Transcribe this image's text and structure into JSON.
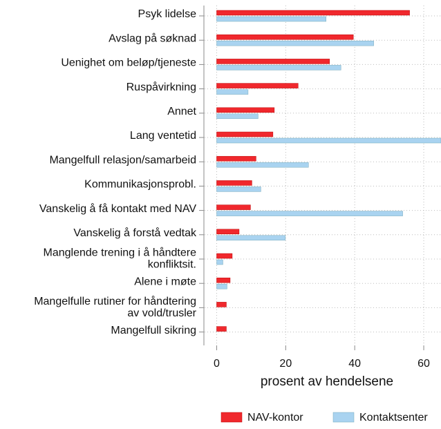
{
  "chart_data": {
    "type": "bar",
    "orientation": "horizontal",
    "categories": [
      "Psyk lidelse",
      "Avslag på søknad",
      "Uenighet om beløp/tjeneste",
      "Ruspåvirkning",
      "Annet",
      "Lang ventetid",
      "Mangelfull relasjon/samarbeid",
      "Kommunikasjonsprobl.",
      "Vanskelig å få kontakt med NAV",
      "Vanskelig å forstå vedtak",
      [
        "Manglende trening i å håndtere",
        "konfliktsit."
      ],
      "Alene i møte",
      [
        "Mangelfulle rutiner for håndtering",
        "av vold/trusler"
      ],
      "Mangelfull sikring"
    ],
    "series": [
      {
        "name": "NAV-kontor",
        "color": "#f0282d",
        "values": [
          55.9,
          39.6,
          32.7,
          23.6,
          16.7,
          16.3,
          11.4,
          10.2,
          9.8,
          6.5,
          4.5,
          3.9,
          2.8,
          2.8
        ]
      },
      {
        "name": "Kontaktsenter",
        "color": "#a9d3f0",
        "values": [
          31.7,
          45.5,
          36.0,
          9.1,
          12.0,
          65,
          26.6,
          12.8,
          53.9,
          19.9,
          1.8,
          3.0,
          null,
          null
        ]
      }
    ],
    "xlabel": "prosent av hendelsene",
    "xlim": [
      -3.5,
      65
    ],
    "xticks": [
      0,
      20,
      40,
      60
    ],
    "grid": true,
    "legend": "bottom"
  }
}
